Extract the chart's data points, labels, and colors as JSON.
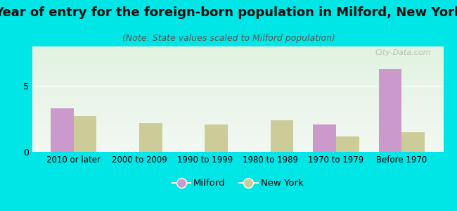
{
  "title": "Year of entry for the foreign-born population in Milford, New York",
  "subtitle": "(Note: State values scaled to Milford population)",
  "categories": [
    "2010 or later",
    "2000 to 2009",
    "1990 to 1999",
    "1980 to 1989",
    "1970 to 1979",
    "Before 1970"
  ],
  "milford_values": [
    3.3,
    0,
    0,
    0,
    2.1,
    6.3
  ],
  "ny_values": [
    2.7,
    2.2,
    2.1,
    2.4,
    1.2,
    1.5
  ],
  "milford_color": "#cc99cc",
  "ny_color": "#cccc99",
  "background_outer": "#00e5e5",
  "ylim": [
    0,
    8
  ],
  "yticks": [
    0,
    5
  ],
  "bar_width": 0.35,
  "title_fontsize": 13,
  "subtitle_fontsize": 9,
  "watermark": "City-Data.com"
}
